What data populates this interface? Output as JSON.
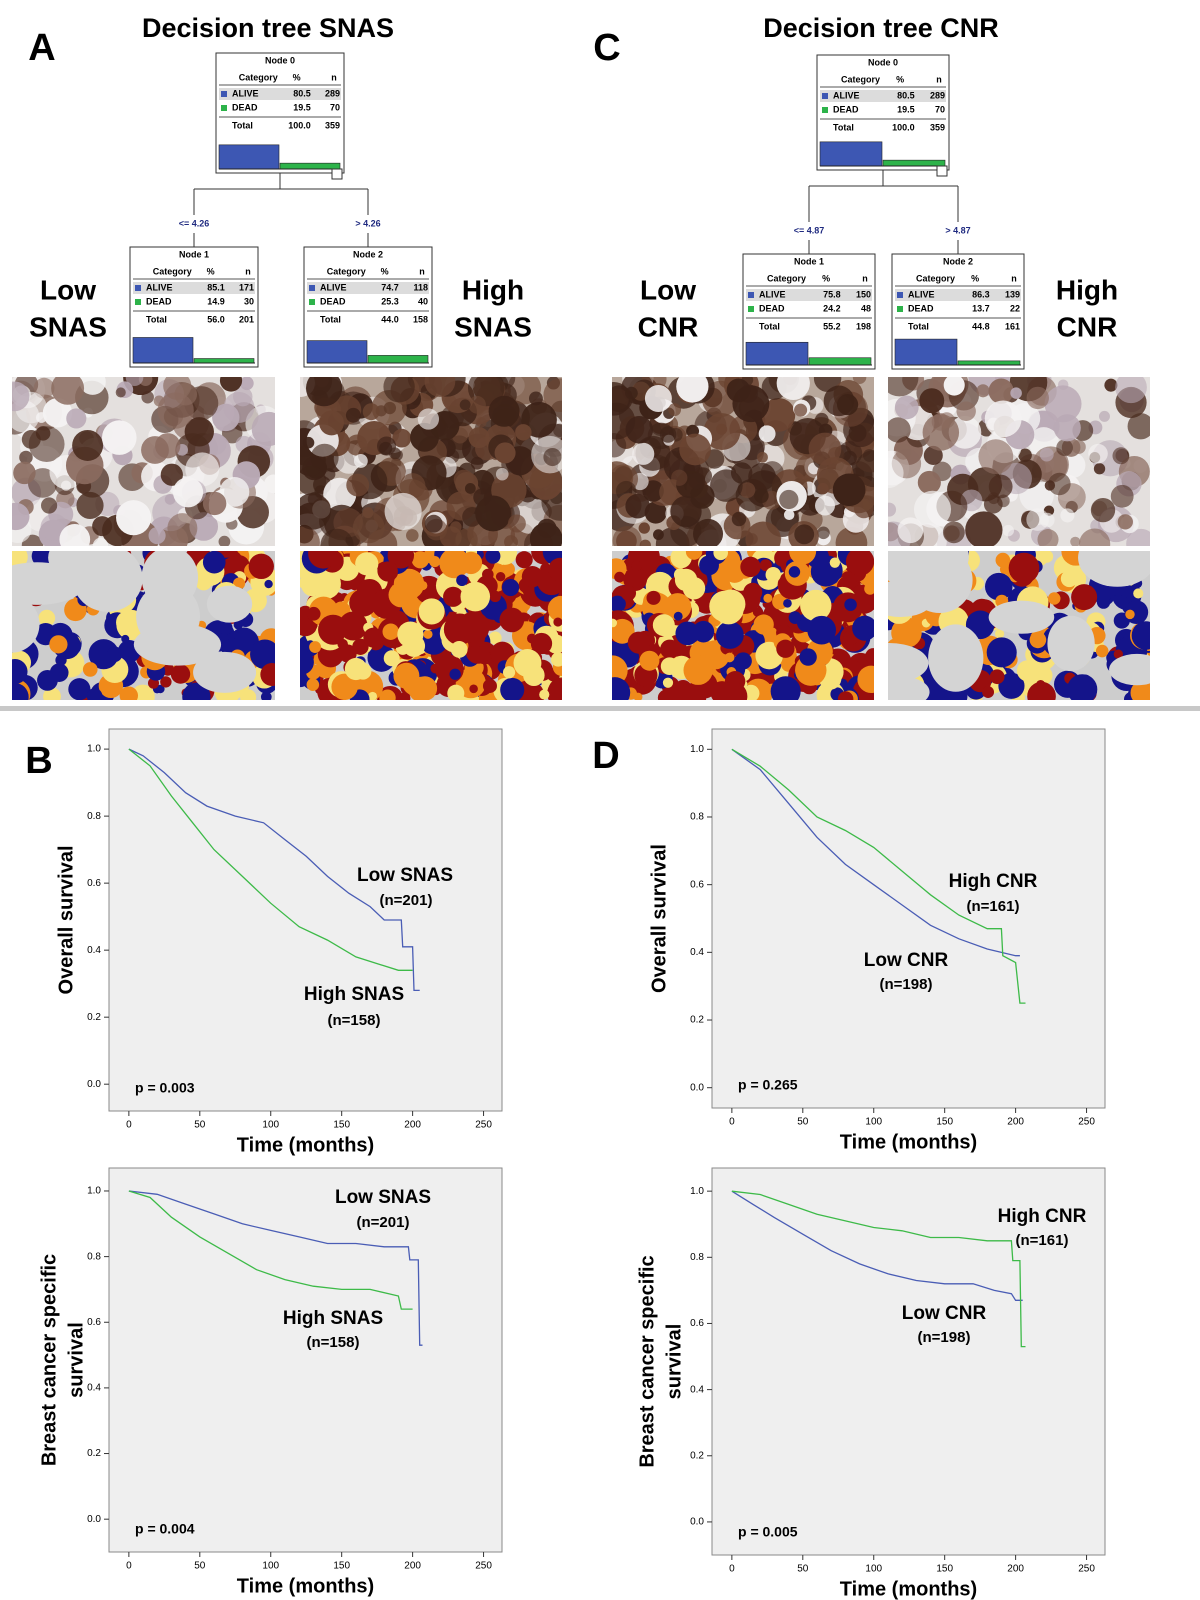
{
  "node_header": [
    "Category",
    "%",
    "n"
  ],
  "panels": [
    {
      "letter": "A",
      "title": "Decision tree SNAS",
      "splits": [
        "<= 4.26",
        "> 4.26"
      ],
      "side_labels": [
        [
          "Low",
          "SNAS"
        ],
        [
          "High",
          "SNAS"
        ]
      ],
      "nodes": [
        {
          "title": "Node 0",
          "rows": [
            [
              "ALIVE",
              "80.5",
              "289"
            ],
            [
              "DEAD",
              "19.5",
              "70"
            ],
            [
              "Total",
              "100.0",
              "359"
            ]
          ]
        },
        {
          "title": "Node 1",
          "rows": [
            [
              "ALIVE",
              "85.1",
              "171"
            ],
            [
              "DEAD",
              "14.9",
              "30"
            ],
            [
              "Total",
              "56.0",
              "201"
            ]
          ]
        },
        {
          "title": "Node 2",
          "rows": [
            [
              "ALIVE",
              "74.7",
              "118"
            ],
            [
              "DEAD",
              "25.3",
              "40"
            ],
            [
              "Total",
              "44.0",
              "158"
            ]
          ]
        }
      ]
    },
    {
      "letter": "C",
      "title": "Decision tree CNR",
      "splits": [
        "<= 4.87",
        "> 4.87"
      ],
      "side_labels": [
        [
          "Low",
          "CNR"
        ],
        [
          "High",
          "CNR"
        ]
      ],
      "nodes": [
        {
          "title": "Node 0",
          "rows": [
            [
              "ALIVE",
              "80.5",
              "289"
            ],
            [
              "DEAD",
              "19.5",
              "70"
            ],
            [
              "Total",
              "100.0",
              "359"
            ]
          ]
        },
        {
          "title": "Node 1",
          "rows": [
            [
              "ALIVE",
              "75.8",
              "150"
            ],
            [
              "DEAD",
              "24.2",
              "48"
            ],
            [
              "Total",
              "55.2",
              "198"
            ]
          ]
        },
        {
          "title": "Node 2",
          "rows": [
            [
              "ALIVE",
              "86.3",
              "139"
            ],
            [
              "DEAD",
              "13.7",
              "22"
            ],
            [
              "Total",
              "44.8",
              "161"
            ]
          ]
        }
      ]
    }
  ],
  "chart_letters": [
    "B",
    "D"
  ],
  "chart_data": [
    {
      "type": "line",
      "ylabel": [
        "Overall survival"
      ],
      "xlabel": "Time (months)",
      "p_label": "p = 0.003",
      "xlim": [
        -14,
        263
      ],
      "xticks": [
        0,
        50,
        100,
        150,
        200,
        250
      ],
      "ylim": [
        -0.08,
        1.06
      ],
      "yticks": [
        {
          "value": 0,
          "label": "0.0"
        },
        0.2,
        0.4,
        0.6,
        0.8,
        {
          "value": 1,
          "label": "1.0"
        }
      ],
      "series": [
        {
          "name": "Low SNAS",
          "n_label": "(n=201)",
          "color": "#4a5db5",
          "x": [
            0,
            10,
            25,
            40,
            55,
            75,
            95,
            110,
            125,
            140,
            155,
            170,
            180,
            192,
            193,
            200,
            201,
            205
          ],
          "values": [
            1,
            0.98,
            0.93,
            0.87,
            0.83,
            0.8,
            0.78,
            0.73,
            0.68,
            0.62,
            0.57,
            0.53,
            0.49,
            0.49,
            0.41,
            0.41,
            0.28,
            0.28
          ]
        },
        {
          "name": "High SNAS",
          "n_label": "(n=158)",
          "color": "#3dba48",
          "x": [
            0,
            15,
            30,
            45,
            60,
            80,
            100,
            120,
            140,
            160,
            175,
            190,
            200
          ],
          "values": [
            1,
            0.95,
            0.86,
            0.78,
            0.7,
            0.62,
            0.54,
            0.47,
            0.43,
            0.38,
            0.36,
            0.34,
            0.34
          ]
        }
      ]
    },
    {
      "type": "line",
      "ylabel": [
        "Breast cancer specific",
        "survival"
      ],
      "xlabel": "Time (months)",
      "p_label": "p = 0.004",
      "xlim": [
        -14,
        263
      ],
      "xticks": [
        0,
        50,
        100,
        150,
        200,
        250
      ],
      "ylim": [
        -0.1,
        1.07
      ],
      "yticks": [
        {
          "value": 0,
          "label": "0.0"
        },
        0.2,
        0.4,
        0.6,
        0.8,
        {
          "value": 1,
          "label": "1.0"
        }
      ],
      "series": [
        {
          "name": "Low SNAS",
          "n_label": "(n=201)",
          "color": "#4a5db5",
          "x": [
            0,
            20,
            40,
            60,
            80,
            100,
            120,
            140,
            160,
            180,
            197,
            198,
            204,
            205,
            207
          ],
          "values": [
            1,
            0.99,
            0.96,
            0.93,
            0.9,
            0.88,
            0.86,
            0.84,
            0.84,
            0.83,
            0.83,
            0.79,
            0.79,
            0.53,
            0.53
          ]
        },
        {
          "name": "High SNAS",
          "n_label": "(n=158)",
          "color": "#3dba48",
          "x": [
            0,
            15,
            30,
            50,
            70,
            90,
            110,
            130,
            150,
            170,
            190,
            192,
            200
          ],
          "values": [
            1,
            0.98,
            0.92,
            0.86,
            0.81,
            0.76,
            0.73,
            0.71,
            0.7,
            0.7,
            0.68,
            0.64,
            0.64
          ]
        }
      ]
    },
    {
      "type": "line",
      "ylabel": [
        "Overall survival"
      ],
      "xlabel": "Time (months)",
      "p_label": "p = 0.265",
      "xlim": [
        -14,
        263
      ],
      "xticks": [
        0,
        50,
        100,
        150,
        200,
        250
      ],
      "ylim": [
        -0.06,
        1.06
      ],
      "yticks": [
        {
          "value": 0,
          "label": "0.0"
        },
        0.2,
        0.4,
        0.6,
        0.8,
        {
          "value": 1,
          "label": "1.0"
        }
      ],
      "series": [
        {
          "name": "Low CNR",
          "n_label": "(n=198)",
          "color": "#4a5db5",
          "x": [
            0,
            20,
            40,
            60,
            80,
            100,
            120,
            140,
            160,
            180,
            200,
            203
          ],
          "values": [
            1,
            0.94,
            0.84,
            0.74,
            0.66,
            0.6,
            0.54,
            0.48,
            0.44,
            0.41,
            0.39,
            0.39
          ]
        },
        {
          "name": "High CNR",
          "n_label": "(n=161)",
          "color": "#3dba48",
          "x": [
            0,
            20,
            40,
            60,
            80,
            100,
            120,
            140,
            160,
            180,
            190,
            191,
            200,
            203,
            207
          ],
          "values": [
            1,
            0.95,
            0.88,
            0.8,
            0.76,
            0.71,
            0.64,
            0.57,
            0.51,
            0.47,
            0.47,
            0.39,
            0.37,
            0.25,
            0.25
          ]
        }
      ]
    },
    {
      "type": "line",
      "ylabel": [
        "Breast cancer specific",
        "survival"
      ],
      "xlabel": "Time (months)",
      "p_label": "p = 0.005",
      "xlim": [
        -14,
        263
      ],
      "xticks": [
        0,
        50,
        100,
        150,
        200,
        250
      ],
      "ylim": [
        -0.1,
        1.07
      ],
      "yticks": [
        {
          "value": 0,
          "label": "0.0"
        },
        0.2,
        0.4,
        0.6,
        0.8,
        {
          "value": 1,
          "label": "1.0"
        }
      ],
      "series": [
        {
          "name": "Low CNR",
          "n_label": "(n=198)",
          "color": "#4a5db5",
          "x": [
            0,
            15,
            30,
            50,
            70,
            90,
            110,
            130,
            150,
            170,
            185,
            197,
            200,
            205
          ],
          "values": [
            1,
            0.96,
            0.92,
            0.87,
            0.82,
            0.78,
            0.75,
            0.73,
            0.72,
            0.72,
            0.7,
            0.69,
            0.67,
            0.67
          ]
        },
        {
          "name": "High CNR",
          "n_label": "(n=161)",
          "color": "#3dba48",
          "x": [
            0,
            20,
            40,
            60,
            80,
            100,
            120,
            140,
            160,
            180,
            197,
            198,
            203,
            204,
            207
          ],
          "values": [
            1,
            0.99,
            0.96,
            0.93,
            0.91,
            0.89,
            0.88,
            0.86,
            0.86,
            0.85,
            0.85,
            0.79,
            0.79,
            0.53,
            0.53
          ]
        }
      ]
    }
  ]
}
